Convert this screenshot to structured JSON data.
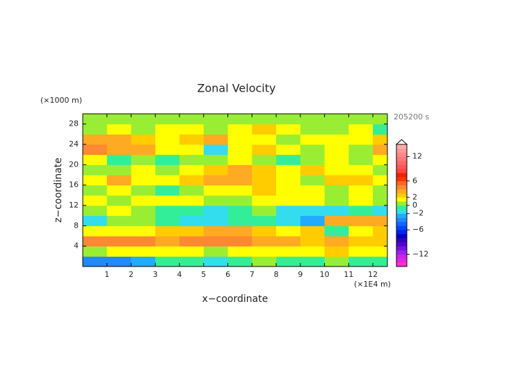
{
  "chart_data": {
    "type": "contour",
    "title": "Zonal Velocity",
    "y_unit": "(×1000 m)",
    "x_unit": "(×1E4 m)",
    "time_label": "205200 s",
    "xlabel": "x−coordinate",
    "ylabel": "z−coordinate",
    "xlim": [
      0,
      12.6
    ],
    "ylim": [
      0,
      30
    ],
    "xticks": [
      1,
      2,
      3,
      4,
      5,
      6,
      7,
      8,
      9,
      10,
      11,
      12
    ],
    "yticks": [
      4,
      8,
      12,
      16,
      20,
      24,
      28
    ],
    "x": [
      0.5,
      1.5,
      2.5,
      3.5,
      4.5,
      5.5,
      6.5,
      7.5,
      8.5,
      9.5,
      10.5,
      11.5,
      12.5
    ],
    "z": [
      1,
      3,
      5,
      7,
      9,
      11,
      13,
      15,
      17,
      19,
      21,
      23,
      25,
      27,
      29
    ],
    "values": [
      [
        -4,
        -4,
        -3,
        -1,
        -1,
        -2,
        -1,
        0,
        -1,
        -1,
        0,
        -1,
        -1
      ],
      [
        0,
        1,
        1,
        1,
        1,
        0,
        1,
        1,
        1,
        1,
        2,
        1,
        1
      ],
      [
        4,
        4,
        4,
        3,
        4,
        4,
        4,
        3,
        3,
        2,
        3,
        2,
        2
      ],
      [
        1,
        1,
        1,
        2,
        2,
        3,
        3,
        2,
        1,
        2,
        -1,
        1,
        2
      ],
      [
        -2,
        0,
        0,
        -1,
        -2,
        -2,
        -1,
        -1,
        -2,
        -3,
        3,
        3,
        3
      ],
      [
        0,
        1,
        0,
        -1,
        -1,
        -2,
        -1,
        0,
        -2,
        -2,
        -2,
        -1,
        -2
      ],
      [
        1,
        0,
        1,
        1,
        1,
        0,
        0,
        1,
        1,
        1,
        0,
        1,
        0
      ],
      [
        0,
        1,
        0,
        -1,
        0,
        1,
        1,
        2,
        1,
        1,
        0,
        1,
        0
      ],
      [
        1,
        3,
        1,
        1,
        2,
        3,
        3,
        2,
        1,
        0,
        2,
        2,
        1
      ],
      [
        0,
        0,
        1,
        0,
        1,
        2,
        3,
        2,
        1,
        2,
        1,
        1,
        0
      ],
      [
        1,
        -1,
        0,
        -1,
        0,
        0,
        1,
        0,
        -1,
        0,
        1,
        0,
        1
      ],
      [
        4,
        3,
        3,
        1,
        1,
        -2,
        1,
        2,
        1,
        0,
        1,
        0,
        3
      ],
      [
        3,
        3,
        2,
        1,
        2,
        3,
        1,
        1,
        0,
        1,
        1,
        1,
        2
      ],
      [
        0,
        1,
        0,
        1,
        1,
        0,
        1,
        2,
        1,
        0,
        0,
        1,
        -1
      ],
      [
        0,
        0,
        0,
        0,
        0,
        0,
        0,
        0,
        0,
        0,
        0,
        0,
        0
      ]
    ],
    "levels": [
      -15,
      -14,
      -13,
      -12,
      -11,
      -10,
      -9,
      -8,
      -7,
      -6,
      -5,
      -4,
      -3,
      -2,
      -1,
      0,
      1,
      2,
      3,
      4,
      5,
      6,
      7,
      8,
      9,
      10,
      11,
      12,
      13,
      14,
      15
    ],
    "colors": [
      "#ff33cc",
      "#ee22dd",
      "#cc22ee",
      "#9922ee",
      "#7711dd",
      "#5500cc",
      "#3300bb",
      "#0000cc",
      "#0022ee",
      "#0044ff",
      "#1166ff",
      "#2288ff",
      "#22aaff",
      "#33ddee",
      "#33ee99",
      "#99ee33",
      "#ffff00",
      "#ffcc00",
      "#ffaa22",
      "#ff8833",
      "#ff6622",
      "#ff3300",
      "#ee2200",
      "#ff4444",
      "#ff5555",
      "#ff6666",
      "#ff7777",
      "#ff8888",
      "#ff9999",
      "#ffaaaa"
    ],
    "colorbar_ticks": [
      12,
      6,
      2,
      0,
      {
        "value": -2,
        "label": "−2"
      },
      {
        "value": -6,
        "label": "−6"
      },
      {
        "value": -12,
        "label": "−12"
      }
    ]
  }
}
